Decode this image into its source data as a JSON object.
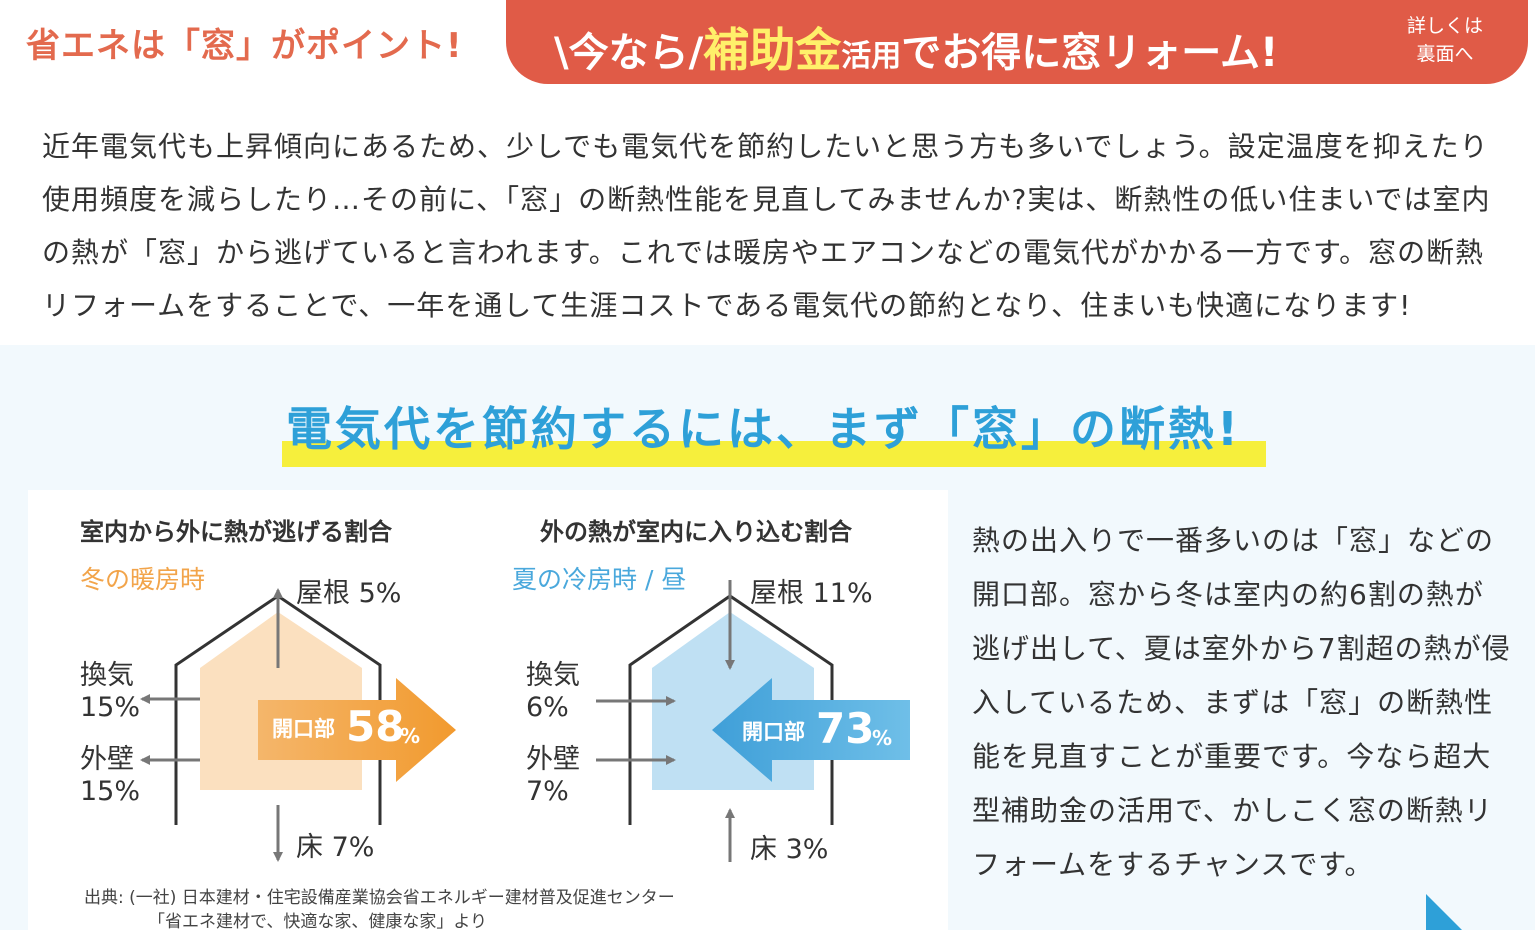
{
  "header": {
    "left_title": "省エネは「窓」がポイント!",
    "banner_prefix": "\\今なら/",
    "banner_highlight": "補助金",
    "banner_small": "活用",
    "banner_suffix": "でお得に窓リォーム!",
    "banner_side_line1": "詳しくは",
    "banner_side_line2": "裏面へ"
  },
  "intro": {
    "text": "近年電気代も上昇傾向にあるため、少しでも電気代を節約したいと思う方も多いでしょう。設定温度を抑えたり使用頻度を減らしたり…その前に、「窓」の断熱性能を見直してみませんか?実は、断熱性の低い住まいでは室内の熱が「窓」から逃げていると言われます。これでは暖房やエアコンなどの電気代がかかる一方です。窓の断熱リフォームをすることで、一年を通して生涯コストである電気代の節約となり、住まいも快適になります!"
  },
  "section": {
    "headline": "電気代を節約するには、まず「窓」の断熱!"
  },
  "colors": {
    "winter_accent": "#f2a44a",
    "summer_accent": "#4aa8dc",
    "banner_bg": "#e05b47",
    "headline_blue": "#2ea0d8",
    "highlight_yellow": "#f6ef3c"
  },
  "winter": {
    "title": "室内から外に熱が逃げる割合",
    "season": "冬の暖房時",
    "roof": "屋根 5%",
    "vent_label": "換気",
    "vent_value": "15%",
    "wall_label": "外壁",
    "wall_value": "15%",
    "floor": "床 7%",
    "opening_label": "開口部",
    "opening_value": "58",
    "opening_unit": "%"
  },
  "summer": {
    "title": "外の熱が室内に入り込む割合",
    "season": "夏の冷房時 / 昼",
    "roof": "屋根 11%",
    "vent_label": "換気",
    "vent_value": "6%",
    "wall_label": "外壁",
    "wall_value": "7%",
    "floor": "床 3%",
    "opening_label": "開口部",
    "opening_value": "73",
    "opening_unit": "%"
  },
  "source": {
    "line1": "出典: (一社) 日本建材・住宅設備産業協会省エネルギー建材普及促進センター",
    "line2": "「省エネ建材で、快適な家、健康な家」より"
  },
  "side": {
    "text": "熱の出入りで一番多いのは「窓」などの開口部。窓から冬は室内の約6割の熱が逃げ出して、夏は室外から7割超の熱が侵入しているため、まずは「窓」の断熱性能を見直すことが重要です。今なら超大型補助金の活用で、かしこく窓の断熱リフォームをするチャンスです。"
  }
}
